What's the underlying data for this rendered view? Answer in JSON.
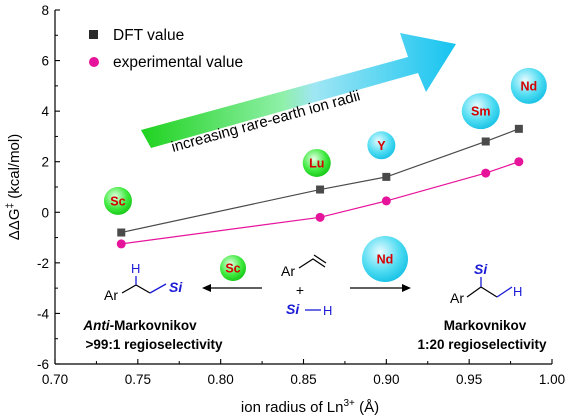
{
  "chart_data": {
    "type": "line",
    "xlabel": "ion radius of Ln",
    "xlabel_sup": "3+",
    "xlabel_unit": " (Å)",
    "ylabel": "ΔΔG",
    "ylabel_sup": "‡",
    "ylabel_unit": " (kcal/mol)",
    "xlim": [
      0.7,
      1.0
    ],
    "ylim": [
      -6,
      8
    ],
    "xticks": [
      "0.70",
      "0.75",
      "0.80",
      "0.85",
      "0.90",
      "0.95",
      "1.00"
    ],
    "yticks": [
      "-6",
      "-4",
      "-2",
      "0",
      "2",
      "4",
      "6",
      "8"
    ],
    "legend_position": "top-left",
    "series": [
      {
        "name": "DFT value",
        "color": "#4a4a4a",
        "marker": "square",
        "x": [
          0.74,
          0.86,
          0.9,
          0.96,
          0.98
        ],
        "y": [
          -0.8,
          0.9,
          1.4,
          2.8,
          3.3
        ]
      },
      {
        "name": "experimental value",
        "color": "#e6139b",
        "marker": "circle",
        "x": [
          0.74,
          0.86,
          0.9,
          0.96,
          0.98
        ],
        "y": [
          -1.25,
          -0.2,
          0.45,
          1.55,
          2.0
        ]
      }
    ],
    "ion_labels": [
      {
        "text": "Sc",
        "x": 0.738,
        "y": 0.45
      },
      {
        "text": "Lu",
        "x": 0.858,
        "y": 1.95
      },
      {
        "text": "Y",
        "x": 0.897,
        "y": 2.65
      },
      {
        "text": "Sm",
        "x": 0.957,
        "y": 4.0
      },
      {
        "text": "Nd",
        "x": 0.986,
        "y": 5.0
      }
    ],
    "trend_arrow_text": "increasing rare-earth ion radii"
  },
  "scheme": {
    "left_catalyst": "Sc",
    "right_catalyst": "Nd",
    "substrate_ar": "Ar",
    "substrate_plus": "+",
    "silane_si": "Si",
    "silane_h": "H",
    "left_product_h": "H",
    "left_product_ar": "Ar",
    "left_product_si": "Si",
    "right_product_si": "Si",
    "right_product_ar": "Ar",
    "right_product_h": "H",
    "left_title_prefix": "Anti",
    "left_title_rest": "-Markovnikov",
    "left_selectivity": ">99:1 regioselectivity",
    "right_title": "Markovnikov",
    "right_selectivity": "1:20 regioselectivity"
  },
  "colors": {
    "ion_bubble_cyan": "#3ad6ef",
    "ion_bubble_green": "#2ee62e",
    "ion_text": "#d40000",
    "silicon_blue": "#1a1ad6"
  }
}
